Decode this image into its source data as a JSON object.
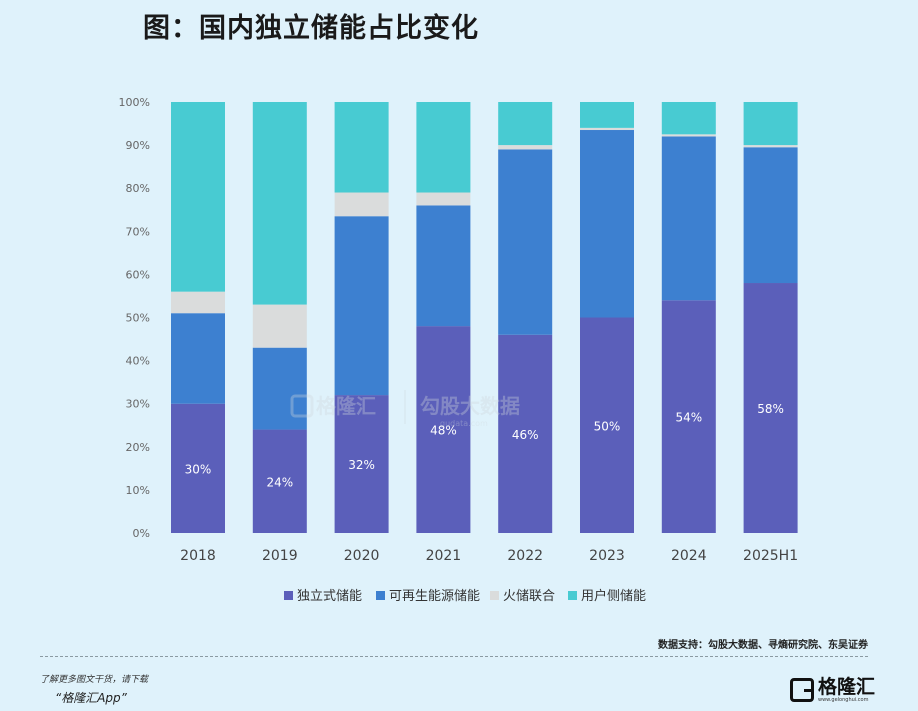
{
  "title": "图：国内独立储能占比变化",
  "chart_data": {
    "type": "bar",
    "stacked": true,
    "categories": [
      "2018",
      "2019",
      "2020",
      "2021",
      "2022",
      "2023",
      "2024",
      "2025H1"
    ],
    "series": [
      {
        "name": "独立式储能",
        "color": "#5b5fba",
        "values": [
          30,
          24,
          32,
          48,
          46,
          50,
          54,
          58
        ]
      },
      {
        "name": "可再生能源储能",
        "color": "#3d80d0",
        "values": [
          21,
          19,
          41.5,
          28,
          43,
          43.5,
          38,
          31.5
        ]
      },
      {
        "name": "火储联合",
        "color": "#dadcdc",
        "values": [
          5,
          10,
          5.5,
          3,
          1,
          0.5,
          0.5,
          0.5
        ]
      },
      {
        "name": "用户侧储能",
        "color": "#48cbd2",
        "values": [
          44,
          47,
          21,
          21,
          10,
          6,
          7.5,
          10
        ]
      }
    ],
    "data_labels": [
      "30%",
      "24%",
      "32%",
      "48%",
      "46%",
      "50%",
      "54%",
      "58%"
    ],
    "y_ticks": [
      "0%",
      "10%",
      "20%",
      "30%",
      "40%",
      "50%",
      "60%",
      "70%",
      "80%",
      "90%",
      "100%"
    ],
    "ylim": [
      0,
      100
    ],
    "legend_position": "bottom",
    "grid": false
  },
  "watermark": {
    "brand": "格隆汇",
    "partner": "勾股大数据",
    "url": "gudata.com"
  },
  "source": "数据支持：勾股大数据、寻熵研究院、东吴证券",
  "footer": {
    "promo_line1": "了解更多图文干货，请下载",
    "promo_line2": "“格隆汇App”",
    "logo_name": "格隆汇",
    "logo_url": "www.gelonghui.com"
  }
}
